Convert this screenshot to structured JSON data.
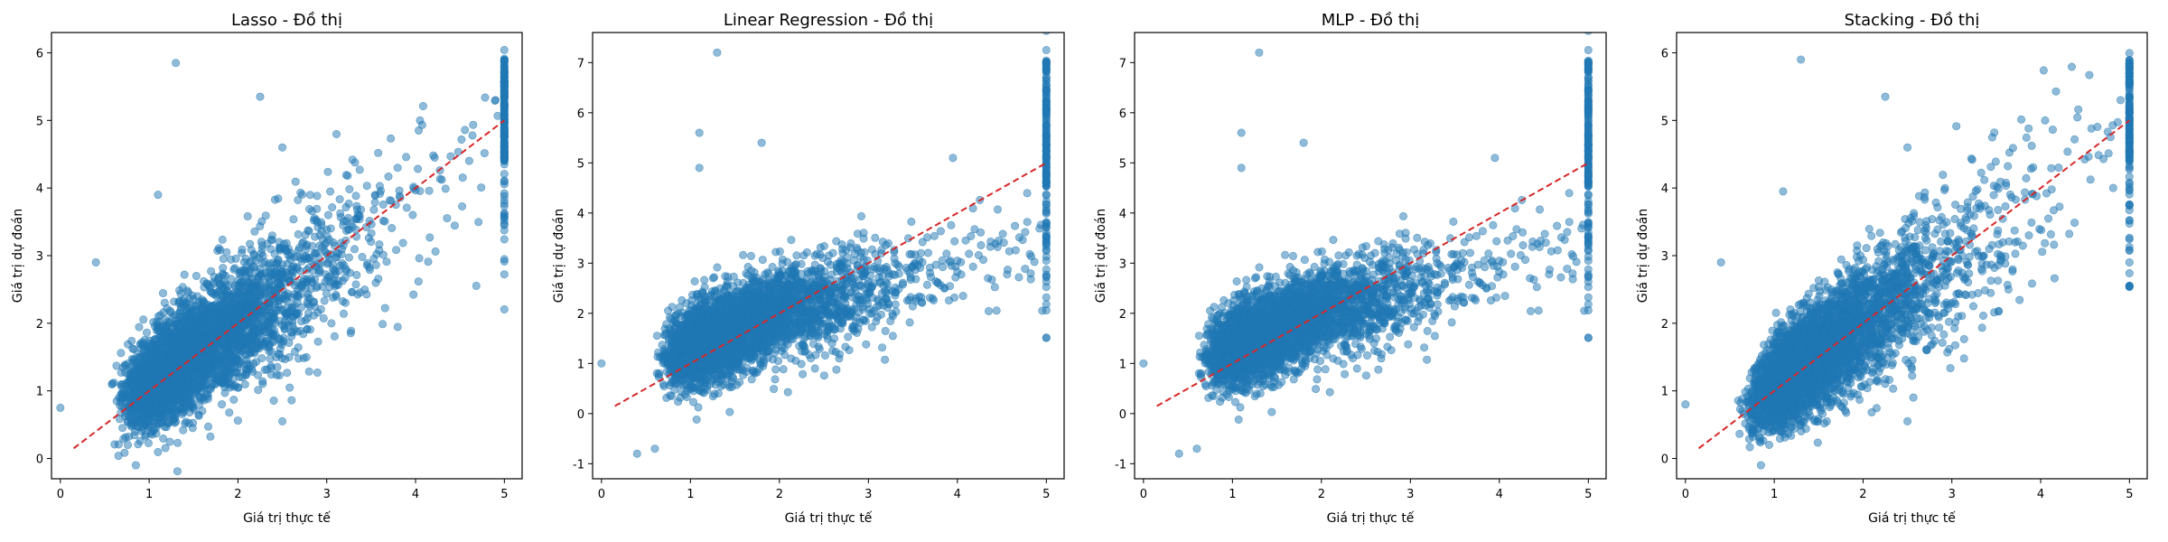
{
  "chart_data": [
    {
      "type": "scatter",
      "title": "Lasso - Đồ thị",
      "xlabel": "Giá trị thực tế",
      "ylabel": "Giá trị dự đoán",
      "xlim": [
        -0.1,
        5.2
      ],
      "ylim": [
        -0.3,
        6.3
      ],
      "xticks": [
        0,
        1,
        2,
        3,
        4,
        5
      ],
      "yticks": [
        0,
        1,
        2,
        3,
        4,
        5,
        6
      ],
      "grid": false,
      "model": "lasso",
      "n_points": 4000,
      "point_color": "#1f77b4",
      "point_alpha": 0.5,
      "reference_line": {
        "from": [
          0.15,
          0.15
        ],
        "to": [
          5.0,
          5.0
        ],
        "color": "#d62728",
        "style": "dashed"
      },
      "notable_points": [
        [
          1.3,
          5.85
        ],
        [
          2.25,
          5.35
        ],
        [
          2.5,
          4.6
        ],
        [
          1.1,
          3.9
        ],
        [
          4.05,
          5.0
        ],
        [
          2.5,
          0.55
        ],
        [
          0.85,
          -0.1
        ],
        [
          0.0,
          0.75
        ],
        [
          0.4,
          2.9
        ],
        [
          4.9,
          5.3
        ]
      ]
    },
    {
      "type": "scatter",
      "title": "Linear Regression - Đồ thị",
      "xlabel": "Giá trị thực tế",
      "ylabel": "Giá trị dự đoán",
      "xlim": [
        -0.1,
        5.2
      ],
      "ylim": [
        -1.3,
        7.6
      ],
      "xticks": [
        0,
        1,
        2,
        3,
        4,
        5
      ],
      "yticks": [
        -1,
        0,
        1,
        2,
        3,
        4,
        5,
        6,
        7
      ],
      "grid": false,
      "model": "linear",
      "n_points": 4000,
      "point_color": "#1f77b4",
      "point_alpha": 0.5,
      "reference_line": {
        "from": [
          0.15,
          0.15
        ],
        "to": [
          5.0,
          5.0
        ],
        "color": "#d62728",
        "style": "dashed"
      },
      "notable_points": [
        [
          1.3,
          7.2
        ],
        [
          1.1,
          5.6
        ],
        [
          1.1,
          4.9
        ],
        [
          1.8,
          5.4
        ],
        [
          3.95,
          5.1
        ],
        [
          0.4,
          -0.8
        ],
        [
          0.6,
          -0.7
        ],
        [
          0.0,
          1.0
        ],
        [
          2.4,
          0.9
        ]
      ]
    },
    {
      "type": "scatter",
      "title": "MLP - Đồ thị",
      "xlabel": "Giá trị thực tế",
      "ylabel": "Giá trị dự đoán",
      "xlim": [
        -0.1,
        5.2
      ],
      "ylim": [
        -1.3,
        7.6
      ],
      "xticks": [
        0,
        1,
        2,
        3,
        4,
        5
      ],
      "yticks": [
        -1,
        0,
        1,
        2,
        3,
        4,
        5,
        6,
        7
      ],
      "grid": false,
      "model": "mlp",
      "n_points": 4000,
      "point_color": "#1f77b4",
      "point_alpha": 0.5,
      "reference_line": {
        "from": [
          0.15,
          0.15
        ],
        "to": [
          5.0,
          5.0
        ],
        "color": "#d62728",
        "style": "dashed"
      },
      "notable_points": [
        [
          1.3,
          7.2
        ],
        [
          1.1,
          5.6
        ],
        [
          1.1,
          4.9
        ],
        [
          1.8,
          5.4
        ],
        [
          3.95,
          5.1
        ],
        [
          0.4,
          -0.8
        ],
        [
          0.6,
          -0.7
        ],
        [
          0.0,
          1.0
        ],
        [
          2.4,
          0.9
        ]
      ]
    },
    {
      "type": "scatter",
      "title": "Stacking - Đồ thị",
      "xlabel": "Giá trị thực tế",
      "ylabel": "Giá trị dự đoán",
      "xlim": [
        -0.1,
        5.2
      ],
      "ylim": [
        -0.3,
        6.3
      ],
      "xticks": [
        0,
        1,
        2,
        3,
        4,
        5
      ],
      "yticks": [
        0,
        1,
        2,
        3,
        4,
        5,
        6
      ],
      "grid": false,
      "model": "stacking",
      "n_points": 4000,
      "point_color": "#1f77b4",
      "point_alpha": 0.5,
      "reference_line": {
        "from": [
          0.15,
          0.15
        ],
        "to": [
          5.0,
          5.0
        ],
        "color": "#d62728",
        "style": "dashed"
      },
      "notable_points": [
        [
          1.3,
          5.9
        ],
        [
          2.25,
          5.35
        ],
        [
          2.5,
          4.6
        ],
        [
          1.1,
          3.95
        ],
        [
          4.05,
          5.0
        ],
        [
          2.5,
          0.55
        ],
        [
          0.85,
          -0.1
        ],
        [
          0.0,
          0.8
        ],
        [
          0.4,
          2.9
        ],
        [
          4.9,
          5.3
        ]
      ]
    }
  ]
}
